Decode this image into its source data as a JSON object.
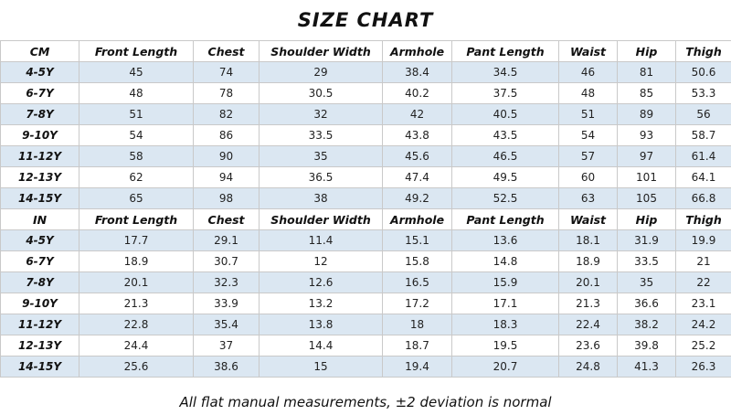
{
  "title": "SIZE CHART",
  "cm_table": {
    "header": [
      "CM",
      "Front Length",
      "Chest",
      "Shoulder Width",
      "Armhole",
      "Pant Length",
      "Waist",
      "Hip",
      "Thigh"
    ],
    "rows": [
      [
        "4-5Y",
        "45",
        "74",
        "29",
        "38.4",
        "34.5",
        "46",
        "81",
        "50.6"
      ],
      [
        "6-7Y",
        "48",
        "78",
        "30.5",
        "40.2",
        "37.5",
        "48",
        "85",
        "53.3"
      ],
      [
        "7-8Y",
        "51",
        "82",
        "32",
        "42",
        "40.5",
        "51",
        "89",
        "56"
      ],
      [
        "9-10Y",
        "54",
        "86",
        "33.5",
        "43.8",
        "43.5",
        "54",
        "93",
        "58.7"
      ],
      [
        "11-12Y",
        "58",
        "90",
        "35",
        "45.6",
        "46.5",
        "57",
        "97",
        "61.4"
      ],
      [
        "12-13Y",
        "62",
        "94",
        "36.5",
        "47.4",
        "49.5",
        "60",
        "101",
        "64.1"
      ],
      [
        "14-15Y",
        "65",
        "98",
        "38",
        "49.2",
        "52.5",
        "63",
        "105",
        "66.8"
      ]
    ]
  },
  "in_table": {
    "header": [
      "IN",
      "Front Length",
      "Chest",
      "Shoulder Width",
      "Armhole",
      "Pant Length",
      "Waist",
      "Hip",
      "Thigh"
    ],
    "rows": [
      [
        "4-5Y",
        "17.7",
        "29.1",
        "11.4",
        "15.1",
        "13.6",
        "18.1",
        "31.9",
        "19.9"
      ],
      [
        "6-7Y",
        "18.9",
        "30.7",
        "12",
        "15.8",
        "14.8",
        "18.9",
        "33.5",
        "21"
      ],
      [
        "7-8Y",
        "20.1",
        "32.3",
        "12.6",
        "16.5",
        "15.9",
        "20.1",
        "35",
        "22"
      ],
      [
        "9-10Y",
        "21.3",
        "33.9",
        "13.2",
        "17.2",
        "17.1",
        "21.3",
        "36.6",
        "23.1"
      ],
      [
        "11-12Y",
        "22.8",
        "35.4",
        "13.8",
        "18",
        "18.3",
        "22.4",
        "38.2",
        "24.2"
      ],
      [
        "12-13Y",
        "24.4",
        "37",
        "14.4",
        "18.7",
        "19.5",
        "23.6",
        "39.8",
        "25.2"
      ],
      [
        "14-15Y",
        "25.6",
        "38.6",
        "15",
        "19.4",
        "20.7",
        "24.8",
        "41.3",
        "26.3"
      ]
    ]
  },
  "footer": "All flat manual measurements, ±2 deviation is normal",
  "colors": {
    "shade": "#dbe7f2",
    "border": "#c9c9c9"
  }
}
